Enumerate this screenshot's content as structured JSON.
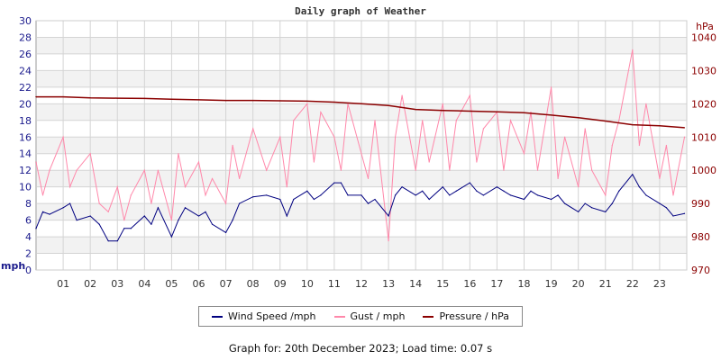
{
  "chart_data": {
    "type": "line",
    "title": "Daily graph of Weather",
    "left_axis": {
      "unit_label": "mph",
      "ylim": [
        0,
        30
      ],
      "ticks": [
        0,
        2,
        4,
        6,
        8,
        10,
        12,
        14,
        16,
        18,
        20,
        22,
        24,
        26,
        28,
        30
      ],
      "color": "#1a1a8c"
    },
    "right_axis": {
      "unit_label": "hPa",
      "ylim": [
        970,
        1045
      ],
      "ticks": [
        970,
        980,
        990,
        1000,
        1010,
        1020,
        1030,
        1040
      ],
      "color": "#8b0000"
    },
    "x_axis": {
      "xlim": [
        0,
        24
      ],
      "tick_labels": [
        "01",
        "02",
        "03",
        "04",
        "05",
        "06",
        "07",
        "08",
        "09",
        "10",
        "11",
        "12",
        "13",
        "14",
        "15",
        "16",
        "17",
        "18",
        "19",
        "20",
        "21",
        "22",
        "23"
      ]
    },
    "grid": true,
    "legend_position": "bottom",
    "series": [
      {
        "name": "Wind Speed /mph",
        "axis": "left",
        "color": "#000080",
        "x": [
          "00:00",
          "00:15",
          "00:30",
          "01:00",
          "01:15",
          "01:30",
          "02:00",
          "02:20",
          "02:40",
          "03:00",
          "03:15",
          "03:30",
          "04:00",
          "04:15",
          "04:30",
          "05:00",
          "05:15",
          "05:30",
          "06:00",
          "06:15",
          "06:30",
          "07:00",
          "07:15",
          "07:30",
          "08:00",
          "08:30",
          "09:00",
          "09:15",
          "09:30",
          "10:00",
          "10:15",
          "10:30",
          "11:00",
          "11:15",
          "11:30",
          "12:00",
          "12:15",
          "12:30",
          "13:00",
          "13:15",
          "13:30",
          "14:00",
          "14:15",
          "14:30",
          "15:00",
          "15:15",
          "15:30",
          "16:00",
          "16:15",
          "16:30",
          "17:00",
          "17:15",
          "17:30",
          "18:00",
          "18:15",
          "18:30",
          "19:00",
          "19:15",
          "19:30",
          "20:00",
          "20:15",
          "20:30",
          "21:00",
          "21:15",
          "21:30",
          "22:00",
          "22:15",
          "22:30",
          "23:00",
          "23:15",
          "23:30",
          "23:55"
        ],
        "y": [
          5,
          7,
          6.7,
          7.5,
          8,
          6,
          6.5,
          5.5,
          3.5,
          3.5,
          5,
          5,
          6.5,
          5.5,
          7.5,
          4,
          6,
          7.5,
          6.5,
          7,
          5.5,
          4.5,
          6,
          8,
          8.8,
          9,
          8.5,
          6.5,
          8.5,
          9.5,
          8.5,
          9,
          10.5,
          10.5,
          9,
          9,
          8,
          8.5,
          6.5,
          9,
          10,
          9,
          9.5,
          8.5,
          10,
          9,
          9.5,
          10.5,
          9.5,
          9,
          10,
          9.5,
          9,
          8.5,
          9.5,
          9,
          8.5,
          9,
          8,
          7,
          8,
          7.5,
          7,
          8,
          9.5,
          11.5,
          10,
          9,
          8,
          7.5,
          6.5,
          6.8
        ]
      },
      {
        "name": "Gust / mph",
        "axis": "left",
        "color": "#ff88aa",
        "x": [
          "00:00",
          "00:15",
          "00:30",
          "01:00",
          "01:15",
          "01:30",
          "02:00",
          "02:20",
          "02:40",
          "03:00",
          "03:15",
          "03:30",
          "04:00",
          "04:15",
          "04:30",
          "05:00",
          "05:15",
          "05:30",
          "06:00",
          "06:15",
          "06:30",
          "07:00",
          "07:15",
          "07:30",
          "08:00",
          "08:30",
          "09:00",
          "09:15",
          "09:30",
          "10:00",
          "10:15",
          "10:30",
          "11:00",
          "11:15",
          "11:30",
          "12:00",
          "12:15",
          "12:30",
          "13:00",
          "13:15",
          "13:30",
          "14:00",
          "14:15",
          "14:30",
          "15:00",
          "15:15",
          "15:30",
          "16:00",
          "16:15",
          "16:30",
          "17:00",
          "17:15",
          "17:30",
          "18:00",
          "18:15",
          "18:30",
          "19:00",
          "19:15",
          "19:30",
          "20:00",
          "20:15",
          "20:30",
          "21:00",
          "21:15",
          "21:30",
          "22:00",
          "22:15",
          "22:30",
          "23:00",
          "23:15",
          "23:30",
          "23:55"
        ],
        "y": [
          13,
          9,
          12,
          16,
          10,
          12,
          14,
          8,
          7,
          10,
          6,
          9,
          12,
          8,
          12,
          6,
          14,
          10,
          13,
          9,
          11,
          8,
          15,
          11,
          17,
          12,
          16,
          10,
          18,
          20,
          13,
          19,
          16,
          12,
          20,
          14,
          11,
          18,
          3.5,
          16,
          21,
          12,
          18,
          13,
          20,
          12,
          18,
          21,
          13,
          17,
          19,
          12,
          18,
          14,
          19,
          12,
          22,
          11,
          16,
          10,
          17,
          12,
          9,
          15,
          18,
          26.5,
          15,
          20,
          11,
          15,
          9,
          16
        ]
      },
      {
        "name": "Pressure / hPa",
        "axis": "right",
        "color": "#8b0000",
        "x": [
          "00:00",
          "01:00",
          "02:00",
          "03:00",
          "04:00",
          "05:00",
          "06:00",
          "07:00",
          "08:00",
          "09:00",
          "10:00",
          "11:00",
          "12:00",
          "13:00",
          "14:00",
          "15:00",
          "16:00",
          "17:00",
          "18:00",
          "19:00",
          "20:00",
          "21:00",
          "22:00",
          "23:00",
          "23:55"
        ],
        "y": [
          1022.1,
          1022.1,
          1021.8,
          1021.7,
          1021.6,
          1021.4,
          1021.2,
          1021.0,
          1021.0,
          1020.9,
          1020.8,
          1020.5,
          1020.0,
          1019.5,
          1018.3,
          1018.0,
          1017.8,
          1017.6,
          1017.3,
          1016.6,
          1015.8,
          1014.8,
          1013.7,
          1013.4,
          1012.8
        ]
      }
    ]
  },
  "legend": {
    "items": [
      "Wind Speed /mph",
      "Gust / mph",
      "Pressure / hPa"
    ]
  },
  "footer": "Graph for: 20th December 2023; Load time: 0.07 s"
}
